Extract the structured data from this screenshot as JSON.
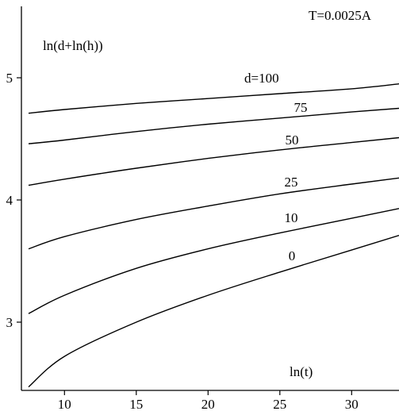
{
  "chart_data": {
    "type": "line",
    "title": "",
    "annotation": "T=0.0025A",
    "xlabel": "ln(t)",
    "ylabel": "ln(d+ln(h))",
    "xlim": [
      7.0,
      33.5
    ],
    "ylim": [
      2.45,
      5.55
    ],
    "xticks": [
      10,
      15,
      20,
      25,
      30
    ],
    "yticks": [
      3,
      4,
      5
    ],
    "grid": false,
    "series": [
      {
        "name": "d=100",
        "x": [
          7.5,
          10,
          15,
          20,
          25,
          30,
          33.3
        ],
        "y": [
          4.71,
          4.74,
          4.79,
          4.83,
          4.87,
          4.91,
          4.95
        ]
      },
      {
        "name": "75",
        "x": [
          7.5,
          10,
          15,
          20,
          25,
          30,
          33.3
        ],
        "y": [
          4.46,
          4.49,
          4.56,
          4.62,
          4.67,
          4.72,
          4.75
        ]
      },
      {
        "name": "50",
        "x": [
          7.5,
          10,
          15,
          20,
          25,
          30,
          33.3
        ],
        "y": [
          4.12,
          4.17,
          4.26,
          4.34,
          4.41,
          4.47,
          4.51
        ]
      },
      {
        "name": "25",
        "x": [
          7.5,
          10,
          15,
          20,
          25,
          30,
          33.3
        ],
        "y": [
          3.6,
          3.7,
          3.84,
          3.95,
          4.05,
          4.13,
          4.18
        ]
      },
      {
        "name": "10",
        "x": [
          7.5,
          10,
          15,
          20,
          25,
          30,
          33.3
        ],
        "y": [
          3.07,
          3.22,
          3.44,
          3.6,
          3.73,
          3.85,
          3.93
        ]
      },
      {
        "name": "0",
        "x": [
          7.5,
          10,
          15,
          20,
          25,
          30,
          33.3
        ],
        "y": [
          2.47,
          2.72,
          3.0,
          3.22,
          3.41,
          3.59,
          3.71
        ]
      }
    ]
  }
}
